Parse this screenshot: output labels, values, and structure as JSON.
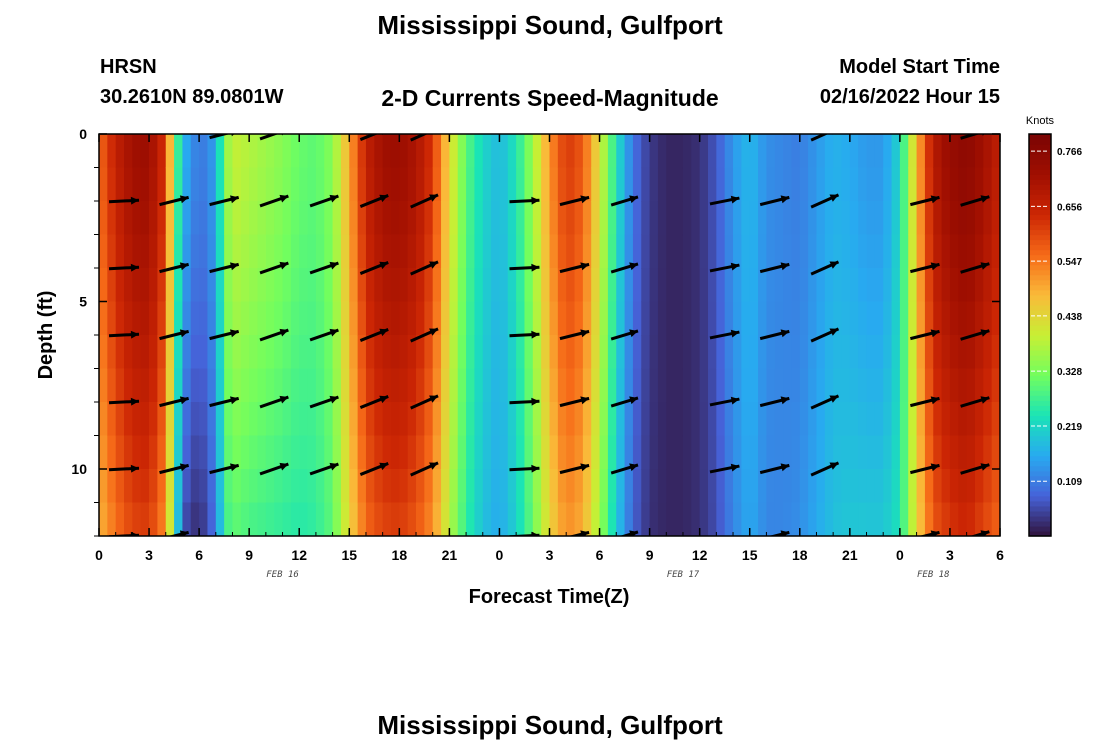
{
  "header": {
    "title": "Mississippi Sound, Gulfport",
    "model": "HRSN",
    "coords": "30.2610N  89.0801W",
    "subtitle": "2-D Currents Speed-Magnitude",
    "start_label": "Model Start Time",
    "start_value": "02/16/2022 Hour 15"
  },
  "footer": {
    "title_repeat": "Mississippi Sound, Gulfport"
  },
  "chart_data": {
    "type": "heatmap",
    "title": "2-D Currents Speed-Magnitude",
    "xlabel": "Forecast Time(Z)",
    "ylabel": "Depth (ft)",
    "xlim": [
      0,
      54
    ],
    "ylim": [
      12,
      0
    ],
    "x_ticks": [
      0,
      3,
      6,
      9,
      12,
      15,
      18,
      21,
      24,
      27,
      30,
      33,
      36,
      39,
      42,
      45,
      48,
      51,
      54
    ],
    "x_tick_labels": [
      "0",
      "3",
      "6",
      "9",
      "12",
      "15",
      "18",
      "21",
      "0",
      "3",
      "6",
      "9",
      "12",
      "15",
      "18",
      "21",
      "0",
      "3",
      "6"
    ],
    "y_ticks": [
      0,
      5,
      10
    ],
    "y_tick_labels": [
      "0",
      "5",
      "10"
    ],
    "date_labels": [
      {
        "x": 11,
        "text": "FEB 16"
      },
      {
        "x": 35,
        "text": "FEB 17"
      },
      {
        "x": 50,
        "text": "FEB 18"
      }
    ],
    "colorbar": {
      "units": "Knots",
      "range": [
        0,
        0.8
      ],
      "ticks": [
        0.109,
        0.219,
        0.328,
        0.438,
        0.547,
        0.656,
        0.766
      ],
      "tick_labels": [
        "0.109",
        "0.219",
        "0.328",
        "0.438",
        "0.547",
        "0.656",
        "0.766"
      ]
    },
    "speed_profile": {
      "hours": [
        0,
        1,
        2,
        3,
        4,
        4.5,
        5,
        6,
        7,
        7.5,
        8,
        9,
        10,
        11,
        12,
        13,
        14,
        15,
        16,
        17,
        18,
        19,
        20,
        21,
        22,
        23,
        24,
        25,
        26,
        27,
        28,
        29,
        30,
        31,
        32,
        33,
        34,
        35,
        36,
        37,
        38,
        39,
        40,
        41,
        42,
        43,
        44,
        45,
        46,
        47,
        48,
        49,
        50,
        51,
        52,
        53,
        54
      ],
      "surface": [
        0.56,
        0.66,
        0.72,
        0.73,
        0.62,
        0.35,
        0.18,
        0.1,
        0.15,
        0.33,
        0.4,
        0.38,
        0.36,
        0.34,
        0.31,
        0.3,
        0.34,
        0.5,
        0.66,
        0.72,
        0.73,
        0.7,
        0.62,
        0.44,
        0.3,
        0.22,
        0.18,
        0.24,
        0.36,
        0.52,
        0.62,
        0.58,
        0.42,
        0.24,
        0.1,
        0.04,
        0.02,
        0.02,
        0.03,
        0.07,
        0.14,
        0.18,
        0.13,
        0.12,
        0.11,
        0.14,
        0.17,
        0.16,
        0.14,
        0.14,
        0.22,
        0.48,
        0.68,
        0.74,
        0.76,
        0.72,
        0.66
      ],
      "bottom": [
        0.48,
        0.55,
        0.6,
        0.61,
        0.52,
        0.3,
        0.06,
        0.02,
        0.1,
        0.26,
        0.3,
        0.28,
        0.27,
        0.26,
        0.25,
        0.26,
        0.3,
        0.44,
        0.56,
        0.6,
        0.61,
        0.58,
        0.52,
        0.38,
        0.26,
        0.19,
        0.16,
        0.21,
        0.31,
        0.44,
        0.52,
        0.49,
        0.36,
        0.2,
        0.08,
        0.03,
        0.02,
        0.02,
        0.03,
        0.06,
        0.12,
        0.16,
        0.12,
        0.12,
        0.13,
        0.16,
        0.19,
        0.2,
        0.2,
        0.2,
        0.24,
        0.44,
        0.58,
        0.62,
        0.64,
        0.6,
        0.56
      ]
    },
    "arrows": [
      {
        "t": 1.5,
        "depths": [
          2,
          4,
          6,
          8,
          10,
          12
        ],
        "dir": [
          1,
          0.05
        ],
        "len": 30
      },
      {
        "t": 4.5,
        "depths": [
          2,
          4,
          6,
          8,
          10,
          12
        ],
        "dir": [
          1,
          0.25
        ],
        "len": 30
      },
      {
        "t": 7.5,
        "depths": [
          0,
          2,
          4,
          6,
          8,
          10
        ],
        "dir": [
          1,
          0.25
        ],
        "len": 30
      },
      {
        "t": 10.5,
        "depths": [
          0,
          2,
          4,
          6,
          8,
          10
        ],
        "dir": [
          1,
          0.35
        ],
        "len": 30
      },
      {
        "t": 13.5,
        "depths": [
          2,
          4,
          6,
          8,
          10
        ],
        "dir": [
          1,
          0.35
        ],
        "len": 30
      },
      {
        "t": 16.5,
        "depths": [
          0,
          2,
          4,
          6,
          8,
          10
        ],
        "dir": [
          1,
          0.4
        ],
        "len": 30
      },
      {
        "t": 19.5,
        "depths": [
          0,
          2,
          4,
          6,
          8,
          10
        ],
        "dir": [
          1,
          0.45
        ],
        "len": 30
      },
      {
        "t": 25.5,
        "depths": [
          2,
          4,
          6,
          8,
          10,
          12
        ],
        "dir": [
          1,
          0.05
        ],
        "len": 30
      },
      {
        "t": 28.5,
        "depths": [
          2,
          4,
          6,
          8,
          10,
          12
        ],
        "dir": [
          1,
          0.25
        ],
        "len": 30
      },
      {
        "t": 31.5,
        "depths": [
          2,
          4,
          6,
          8,
          10,
          12
        ],
        "dir": [
          1,
          0.3
        ],
        "len": 28
      },
      {
        "t": 37.5,
        "depths": [
          2,
          4,
          6,
          8,
          10
        ],
        "dir": [
          1,
          0.2
        ],
        "len": 30
      },
      {
        "t": 40.5,
        "depths": [
          2,
          4,
          6,
          8,
          10,
          12
        ],
        "dir": [
          1,
          0.25
        ],
        "len": 30
      },
      {
        "t": 43.5,
        "depths": [
          0,
          2,
          4,
          6,
          8,
          10
        ],
        "dir": [
          1,
          0.45
        ],
        "len": 30
      },
      {
        "t": 49.5,
        "depths": [
          2,
          4,
          6,
          8,
          10,
          12
        ],
        "dir": [
          1,
          0.25
        ],
        "len": 30
      },
      {
        "t": 52.5,
        "depths": [
          0,
          2,
          4,
          6,
          8,
          10,
          12
        ],
        "dir": [
          1,
          0.3
        ],
        "len": 30
      }
    ]
  }
}
